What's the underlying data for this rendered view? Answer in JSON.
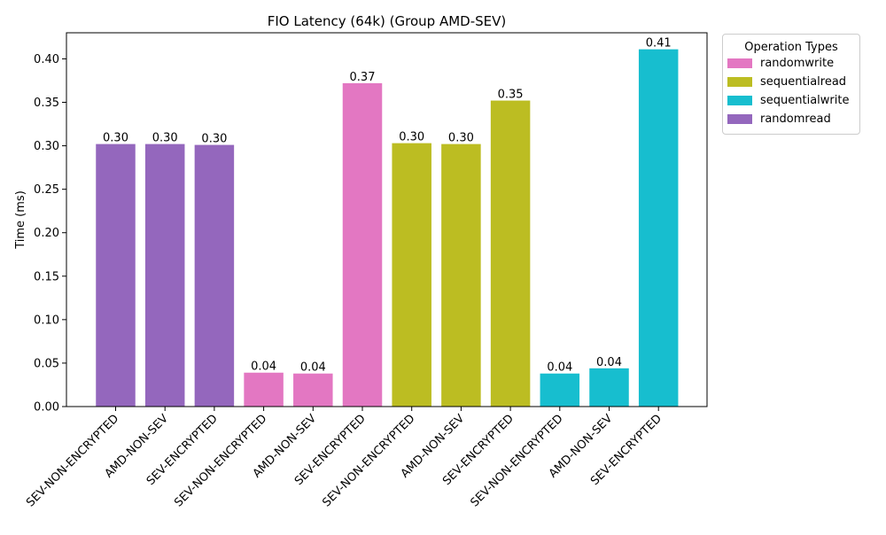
{
  "chart_data": {
    "type": "bar",
    "title": "FIO Latency (64k) (Group AMD-SEV)",
    "xlabel": "",
    "ylabel": "Time (ms)",
    "ylim": [
      0,
      0.43
    ],
    "yticks": [
      0.0,
      0.05,
      0.1,
      0.15,
      0.2,
      0.25,
      0.3,
      0.35,
      0.4
    ],
    "grid": false,
    "legend_title": "Operation Types",
    "legend_position": "outside-top-right",
    "legend": [
      {
        "name": "randomwrite",
        "color": "#e377c2"
      },
      {
        "name": "sequentialread",
        "color": "#bcbd22"
      },
      {
        "name": "sequentialwrite",
        "color": "#17becf"
      },
      {
        "name": "randomread",
        "color": "#9467bd"
      }
    ],
    "bars": [
      {
        "category": "SEV-NON-ENCRYPTED",
        "operation": "randomread",
        "value": 0.302,
        "label": "0.30",
        "color": "#9467bd"
      },
      {
        "category": "AMD-NON-SEV",
        "operation": "randomread",
        "value": 0.302,
        "label": "0.30",
        "color": "#9467bd"
      },
      {
        "category": "SEV-ENCRYPTED",
        "operation": "randomread",
        "value": 0.301,
        "label": "0.30",
        "color": "#9467bd"
      },
      {
        "category": "SEV-NON-ENCRYPTED",
        "operation": "randomwrite",
        "value": 0.039,
        "label": "0.04",
        "color": "#e377c2"
      },
      {
        "category": "AMD-NON-SEV",
        "operation": "randomwrite",
        "value": 0.038,
        "label": "0.04",
        "color": "#e377c2"
      },
      {
        "category": "SEV-ENCRYPTED",
        "operation": "randomwrite",
        "value": 0.372,
        "label": "0.37",
        "color": "#e377c2"
      },
      {
        "category": "SEV-NON-ENCRYPTED",
        "operation": "sequentialread",
        "value": 0.303,
        "label": "0.30",
        "color": "#bcbd22"
      },
      {
        "category": "AMD-NON-SEV",
        "operation": "sequentialread",
        "value": 0.302,
        "label": "0.30",
        "color": "#bcbd22"
      },
      {
        "category": "SEV-ENCRYPTED",
        "operation": "sequentialread",
        "value": 0.352,
        "label": "0.35",
        "color": "#bcbd22"
      },
      {
        "category": "SEV-NON-ENCRYPTED",
        "operation": "sequentialwrite",
        "value": 0.038,
        "label": "0.04",
        "color": "#17becf"
      },
      {
        "category": "AMD-NON-SEV",
        "operation": "sequentialwrite",
        "value": 0.044,
        "label": "0.04",
        "color": "#17becf"
      },
      {
        "category": "SEV-ENCRYPTED",
        "operation": "sequentialwrite",
        "value": 0.411,
        "label": "0.41",
        "color": "#17becf"
      }
    ]
  }
}
